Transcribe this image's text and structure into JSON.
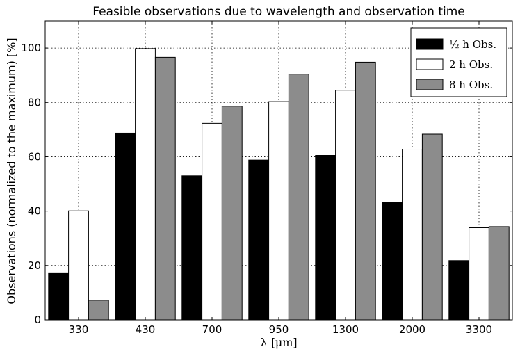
{
  "chart_data": {
    "type": "bar",
    "title": "Feasible observations due to wavelength and observation time",
    "xlabel": "λ [μm]",
    "ylabel": "Observations (normalized to the maximum) [%]",
    "categories": [
      "330",
      "430",
      "700",
      "950",
      "1300",
      "2000",
      "3300"
    ],
    "ylim": [
      0,
      110
    ],
    "yticks": [
      0,
      20,
      40,
      60,
      80,
      100
    ],
    "ytick_labels": [
      "0",
      "20",
      "40",
      "60",
      "80",
      "100"
    ],
    "grid": true,
    "legend_position": "top-right",
    "series": [
      {
        "name": "½ h Obs.",
        "color": "#000000",
        "values": [
          17.3,
          68.7,
          53.0,
          58.8,
          60.5,
          43.3,
          21.8
        ]
      },
      {
        "name": "2 h Obs.",
        "color": "#ffffff",
        "values": [
          40.1,
          99.8,
          72.3,
          80.3,
          84.5,
          62.8,
          33.9
        ]
      },
      {
        "name": "8 h Obs.",
        "color": "#8c8c8c",
        "values": [
          7.2,
          96.6,
          78.6,
          90.4,
          94.8,
          68.3,
          34.3
        ]
      }
    ]
  }
}
